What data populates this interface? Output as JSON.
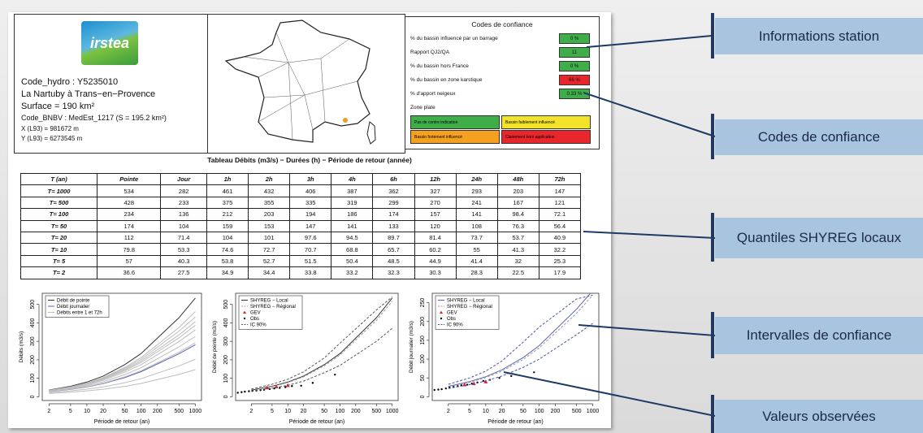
{
  "station": {
    "logo": "irstea",
    "code_hydro": "Code_hydro : Y5235010",
    "name": "La Nartuby à Trans−en−Provence",
    "surface": "Surface = 190 km²",
    "code_bnbv": "Code_BNBV : MedEst_1217 (S = 195.2 km²)",
    "x": "X (L93) = 981672 m",
    "y": "Y (L93) = 6273545 m"
  },
  "confidence": {
    "title": "Codes de confiance",
    "rows": [
      {
        "label": "% du bassin influencé par un barrage",
        "value": "0 %",
        "color": "#3fae49"
      },
      {
        "label": "Rapport QJ2/QA",
        "value": "11",
        "color": "#3fae49"
      },
      {
        "label": "% du bassin hors France",
        "value": "0 %",
        "color": "#3fae49"
      },
      {
        "label": "% du bassin en zone karstique",
        "value": "66 %",
        "color": "#e8262c"
      },
      {
        "label": "% d'apport neigeux",
        "value": "0.33 %",
        "color": "#3fae49"
      },
      {
        "label": "Zone plate"
      }
    ],
    "legend": [
      {
        "label": "Pas de contre indication",
        "color": "#3fae49"
      },
      {
        "label": "Bassin faiblement influencé",
        "color": "#f2e22a"
      },
      {
        "label": "Bassin fortement influencé",
        "color": "#f4a020"
      },
      {
        "label": "Clairement hors application",
        "color": "#e8262c"
      }
    ]
  },
  "table": {
    "title": "Tableau Débits (m3/s) − Durées (h) − Période de retour (année)",
    "header": [
      "T (an)",
      "Pointe",
      "Jour",
      "1h",
      "2h",
      "3h",
      "4h",
      "6h",
      "12h",
      "24h",
      "48h",
      "72h"
    ],
    "rows": [
      [
        "T= 1000",
        "534",
        "282",
        "461",
        "432",
        "406",
        "387",
        "362",
        "327",
        "293",
        "203",
        "147"
      ],
      [
        "T= 500",
        "428",
        "233",
        "375",
        "355",
        "335",
        "319",
        "299",
        "270",
        "241",
        "167",
        "121"
      ],
      [
        "T= 100",
        "234",
        "136",
        "212",
        "203",
        "194",
        "186",
        "174",
        "157",
        "141",
        "98.4",
        "72.1"
      ],
      [
        "T= 50",
        "174",
        "104",
        "159",
        "153",
        "147",
        "141",
        "133",
        "120",
        "108",
        "76.3",
        "56.4"
      ],
      [
        "T= 20",
        "112",
        "71.4",
        "104",
        "101",
        "97.6",
        "94.5",
        "89.7",
        "81.4",
        "73.7",
        "53.7",
        "40.9"
      ],
      [
        "T= 10",
        "79.8",
        "53.3",
        "74.6",
        "72.7",
        "70.7",
        "68.8",
        "65.7",
        "60.2",
        "55",
        "41.3",
        "32.2"
      ],
      [
        "T= 5",
        "57",
        "40.3",
        "53.8",
        "52.7",
        "51.5",
        "50.4",
        "48.5",
        "44.9",
        "41.4",
        "32",
        "25.3"
      ],
      [
        "T= 2",
        "36.6",
        "27.5",
        "34.9",
        "34.4",
        "33.8",
        "33.2",
        "32.3",
        "30.3",
        "28.3",
        "22.5",
        "17.9"
      ]
    ]
  },
  "chart_data": [
    {
      "type": "line",
      "log_x": true,
      "xlabel": "Période de retour (an)",
      "ylabel": "Débits (m3/s)",
      "x": [
        2,
        5,
        10,
        20,
        50,
        100,
        500,
        1000
      ],
      "xlim": [
        1.5,
        1300
      ],
      "xticks": [
        2,
        5,
        10,
        20,
        50,
        100,
        200,
        500,
        1000
      ],
      "ylim": [
        -20,
        560
      ],
      "yticks": [
        0,
        100,
        200,
        300,
        400,
        500
      ],
      "series": [
        {
          "name": "Débit de pointe",
          "color": "#333333",
          "values": [
            36.6,
            57,
            79.8,
            112,
            174,
            234,
            428,
            534
          ]
        },
        {
          "name": "Débit journalier",
          "color": "#5a64b4",
          "values": [
            27.5,
            40.3,
            53.3,
            71.4,
            104,
            136,
            233,
            282
          ]
        },
        {
          "name": "Débits entre 1 et 72h",
          "color": "#bdbdbd",
          "values": [
            [
              34.9,
              53.8,
              74.6,
              104,
              159,
              212,
              375,
              461
            ],
            [
              34.4,
              52.7,
              72.7,
              101,
              153,
              203,
              355,
              432
            ],
            [
              33.8,
              51.5,
              70.7,
              97.6,
              147,
              194,
              335,
              406
            ],
            [
              33.2,
              50.4,
              68.8,
              94.5,
              141,
              186,
              319,
              387
            ],
            [
              32.3,
              48.5,
              65.7,
              89.7,
              133,
              174,
              299,
              362
            ],
            [
              30.3,
              44.9,
              60.2,
              81.4,
              120,
              157,
              270,
              327
            ],
            [
              28.3,
              41.4,
              55,
              73.7,
              108,
              141,
              241,
              293
            ],
            [
              22.5,
              32,
              41.3,
              53.7,
              76.3,
              98.4,
              167,
              203
            ],
            [
              17.9,
              25.3,
              32.2,
              40.9,
              56.4,
              72.1,
              121,
              147
            ]
          ]
        }
      ]
    },
    {
      "type": "line",
      "log_x": true,
      "xlabel": "Période de retour (an)",
      "ylabel": "Débit de pointe (m3/s)",
      "x": [
        2,
        5,
        10,
        20,
        50,
        100,
        500,
        1000
      ],
      "xlim": [
        1,
        1300
      ],
      "xticks": [
        2,
        5,
        10,
        20,
        50,
        100,
        200,
        500,
        1000
      ],
      "ylim": [
        -20,
        560
      ],
      "yticks": [
        0,
        100,
        200,
        300,
        400,
        500
      ],
      "series": [
        {
          "name": "SHYREG − Local",
          "color": "#333333",
          "values": [
            36.6,
            57,
            79.8,
            112,
            174,
            234,
            428,
            534
          ]
        },
        {
          "name": "SHYREG − Régional",
          "color": "#9a9a9a",
          "dash": true,
          "values": [
            35,
            55,
            77,
            108,
            168,
            226,
            414,
            516
          ]
        },
        {
          "name": "GEV",
          "color": "#e0202a",
          "marker": "triangle",
          "x": [
            4,
            6,
            10
          ],
          "values": [
            50,
            55,
            62
          ]
        },
        {
          "name": "Obs",
          "color": "#000000",
          "marker": "dot",
          "x": [
            1.1,
            1.3,
            1.5,
            1.8,
            2.1,
            2.5,
            3,
            3.5,
            4.5,
            5.5,
            7,
            9,
            12,
            18,
            30,
            80
          ],
          "values": [
            22,
            25,
            28,
            30,
            32,
            34,
            36,
            38,
            42,
            45,
            48,
            52,
            58,
            60,
            75,
            120
          ]
        },
        {
          "name": "IC 90%",
          "color": "#555555",
          "dash": true,
          "lower": [
            32,
            47,
            62,
            85,
            130,
            170,
            300,
            370
          ],
          "upper": [
            42,
            68,
            95,
            135,
            210,
            290,
            470,
            540
          ]
        }
      ]
    },
    {
      "type": "line",
      "log_x": true,
      "xlabel": "Période de retour (an)",
      "ylabel": "Débit journalier (m3/s)",
      "x": [
        2,
        5,
        10,
        20,
        50,
        100,
        500,
        1000
      ],
      "xlim": [
        1,
        1300
      ],
      "xticks": [
        2,
        5,
        10,
        20,
        50,
        100,
        200,
        500,
        1000
      ],
      "ylim": [
        -10,
        275
      ],
      "yticks": [
        0,
        50,
        100,
        150,
        200,
        250
      ],
      "series": [
        {
          "name": "SHYREG − Local",
          "color": "#5a64b4",
          "values": [
            27.5,
            40.3,
            53.3,
            71.4,
            104,
            136,
            233,
            282
          ]
        },
        {
          "name": "SHYREG − Régional",
          "color": "#9a9a9a",
          "dash": true,
          "values": [
            26,
            38,
            51,
            68,
            99,
            130,
            222,
            270
          ]
        },
        {
          "name": "GEV",
          "color": "#e0202a",
          "marker": "triangle",
          "x": [
            4,
            6,
            10
          ],
          "values": [
            32,
            35,
            40
          ]
        },
        {
          "name": "Obs",
          "color": "#000000",
          "marker": "dot",
          "x": [
            1.1,
            1.3,
            1.5,
            1.8,
            2.1,
            2.5,
            3,
            3.5,
            4.5,
            5.5,
            7,
            9,
            12,
            18,
            30,
            80
          ],
          "values": [
            18,
            19,
            20,
            22,
            24,
            26,
            28,
            30,
            32,
            35,
            38,
            42,
            45,
            50,
            55,
            65
          ]
        },
        {
          "name": "IC 90%",
          "color": "#4a55a8",
          "dash": true,
          "lower": [
            22,
            32,
            42,
            55,
            78,
            100,
            165,
            195
          ],
          "upper": [
            33,
            50,
            68,
            95,
            145,
            185,
            260,
            270
          ]
        }
      ]
    }
  ],
  "callouts": [
    "Informations station",
    "Codes de confiance",
    "Quantiles SHYREG locaux",
    "Intervalles de confiance",
    "Valeurs observées"
  ]
}
